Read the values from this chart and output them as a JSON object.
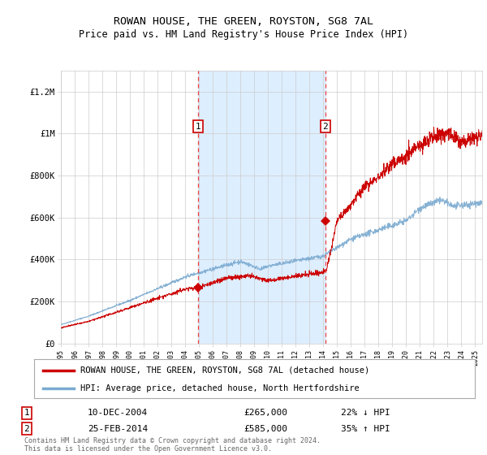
{
  "title": "ROWAN HOUSE, THE GREEN, ROYSTON, SG8 7AL",
  "subtitle": "Price paid vs. HM Land Registry's House Price Index (HPI)",
  "ylabel_ticks": [
    "£0",
    "£200K",
    "£400K",
    "£600K",
    "£800K",
    "£1M",
    "£1.2M"
  ],
  "ytick_values": [
    0,
    200000,
    400000,
    600000,
    800000,
    1000000,
    1200000
  ],
  "ylim": [
    0,
    1300000
  ],
  "xlim_start": 1995.0,
  "xlim_end": 2025.5,
  "marker1_x": 2004.94,
  "marker1_y": 265000,
  "marker2_x": 2014.15,
  "marker2_y": 585000,
  "vline1_x": 2004.94,
  "vline2_x": 2014.15,
  "shade_x1": 2004.94,
  "shade_x2": 2014.15,
  "red_line_color": "#cc0000",
  "blue_line_color": "#7aaad0",
  "shade_color": "#ddeeff",
  "vline_color": "#ee4444",
  "grid_color": "#cccccc",
  "background_color": "#ffffff",
  "legend_label_red": "ROWAN HOUSE, THE GREEN, ROYSTON, SG8 7AL (detached house)",
  "legend_label_blue": "HPI: Average price, detached house, North Hertfordshire",
  "annotation1_label": "1",
  "annotation2_label": "2",
  "table_row1": [
    "1",
    "10-DEC-2004",
    "£265,000",
    "22% ↓ HPI"
  ],
  "table_row2": [
    "2",
    "25-FEB-2014",
    "£585,000",
    "35% ↑ HPI"
  ],
  "footer": "Contains HM Land Registry data © Crown copyright and database right 2024.\nThis data is licensed under the Open Government Licence v3.0.",
  "title_fontsize": 9.5,
  "subtitle_fontsize": 8.5,
  "tick_fontsize": 7.5,
  "legend_fontsize": 8
}
